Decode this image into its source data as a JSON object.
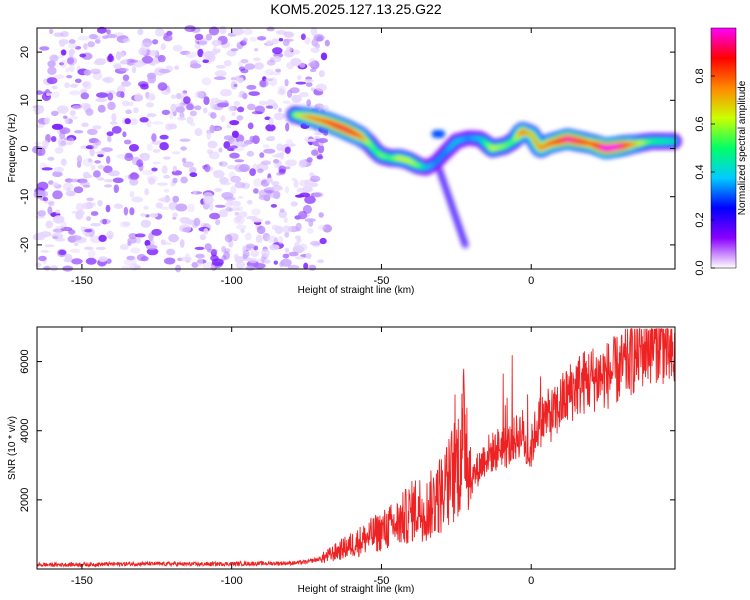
{
  "figure": {
    "title": "KOM5.2025.127.13.25.G22"
  },
  "chart_data": [
    {
      "type": "heatmap",
      "xlabel": "Height of straight line (km)",
      "ylabel": "Frequency (Hz)",
      "xlim": [
        -165,
        48
      ],
      "ylim": [
        -25,
        25
      ],
      "xticks": [
        -150,
        -100,
        -50,
        0
      ],
      "yticks": [
        -20,
        -10,
        0,
        10,
        20
      ],
      "grid": false,
      "colorbar": {
        "label": "Normalized spectral amplitude",
        "range": [
          0.0,
          1.0
        ],
        "ticks": [
          0.0,
          0.2,
          0.4,
          0.6,
          0.8
        ],
        "colormap": [
          "#ffffff",
          "#8a00ff",
          "#0000ff",
          "#00ccff",
          "#00ff66",
          "#ccff00",
          "#ff8800",
          "#ff0000",
          "#ff00ff"
        ]
      },
      "noise_region": {
        "x": [
          -165,
          -68
        ],
        "y": [
          -25,
          25
        ],
        "typical_amplitude": 0.15
      },
      "signal_ridge": {
        "x": [
          -79,
          -74,
          -68,
          -62,
          -57,
          -54,
          -52,
          -50,
          -47,
          -44,
          -41,
          -38,
          -35,
          -32,
          -29,
          -25,
          -21,
          -17,
          -13,
          -9,
          -6,
          -3,
          0,
          3,
          6,
          9,
          12,
          16,
          20,
          25,
          30,
          35,
          40,
          48
        ],
        "frequency": [
          7,
          6.5,
          5.5,
          4,
          2.5,
          1,
          -0.5,
          -1.5,
          -2,
          -2,
          -2.5,
          -3.5,
          -4,
          -3,
          -1,
          1.5,
          2.2,
          2,
          0,
          0.5,
          1.5,
          3.5,
          3,
          0,
          1,
          1.5,
          2,
          1.5,
          1,
          0,
          0.5,
          1,
          1.5,
          1.5
        ],
        "amplitude": [
          0.5,
          0.65,
          0.72,
          0.8,
          0.7,
          0.5,
          0.45,
          0.5,
          0.45,
          0.55,
          0.55,
          0.5,
          0.35,
          0.3,
          0.3,
          0.35,
          0.3,
          0.35,
          0.55,
          0.5,
          0.45,
          0.7,
          0.6,
          0.65,
          0.7,
          0.75,
          0.85,
          0.8,
          0.7,
          0.9,
          0.85,
          0.6,
          0.45,
          0.4
        ]
      },
      "artifacts": [
        {
          "x": [
            -32,
            -22
          ],
          "frequency": [
            -2,
            -20
          ],
          "amplitude": 0.2
        },
        {
          "x": [
            -32,
            -30
          ],
          "frequency": [
            3,
            3
          ],
          "amplitude": 0.3
        }
      ]
    },
    {
      "type": "line",
      "xlabel": "Height of straight line (km)",
      "ylabel": "SNR (10 * v/v)",
      "xlim": [
        -165,
        48
      ],
      "ylim": [
        0,
        7000
      ],
      "xticks": [
        -150,
        -100,
        -50,
        0
      ],
      "yticks": [
        2000,
        4000,
        6000
      ],
      "grid": false,
      "color": "#ee2222",
      "series": [
        {
          "x": [
            -165,
            -150,
            -130,
            -110,
            -90,
            -80,
            -75,
            -70,
            -65,
            -60,
            -55,
            -50,
            -45,
            -42,
            -38,
            -35,
            -32,
            -28,
            -25,
            -23,
            -22,
            -20,
            -17,
            -15,
            -12,
            -10,
            -8,
            -5,
            -3,
            -1,
            0,
            2,
            5,
            8,
            10,
            15,
            20,
            25,
            30,
            35,
            40,
            43,
            48
          ],
          "values": [
            120,
            130,
            150,
            140,
            160,
            170,
            200,
            300,
            500,
            700,
            900,
            1100,
            1300,
            1500,
            1800,
            1700,
            2000,
            2400,
            3000,
            3500,
            4200,
            2600,
            3000,
            3300,
            3400,
            3600,
            3500,
            3800,
            4000,
            3200,
            3500,
            4200,
            4400,
            4500,
            4800,
            5300,
            5500,
            5600,
            5800,
            6200,
            6500,
            6600,
            6000
          ]
        }
      ]
    }
  ]
}
